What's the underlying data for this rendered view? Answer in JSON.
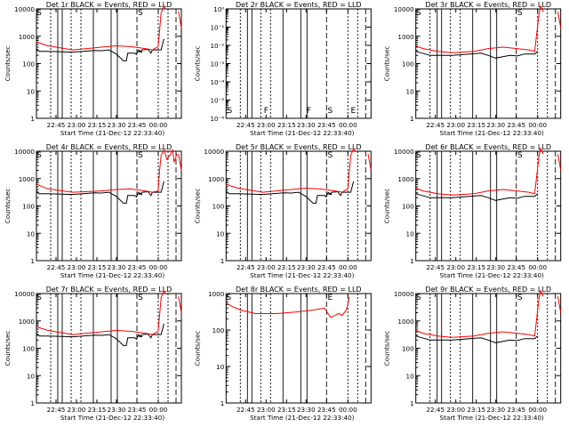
{
  "chart_data": [
    {
      "type": "line",
      "title": "Det 1r BLACK = Events, RED = LLD",
      "xlabel": "Start Time (21-Dec-12 22:33:40)",
      "ylabel": "Counts/sec",
      "yscale": "log",
      "ylim": [
        1,
        10000
      ],
      "ytick_labels": [
        "1",
        "10",
        "100",
        "1000",
        "10000"
      ],
      "xtick_labels": [
        "22:45",
        "23:00",
        "23:15",
        "23:30",
        "23:45",
        "00:00"
      ],
      "markers": [
        {
          "label": "S"
        },
        {
          "label": "S"
        }
      ],
      "series": [
        {
          "name": "Events",
          "color": "#000000",
          "shape": "A"
        },
        {
          "name": "LLD",
          "color": "#ff0000",
          "shape": "A"
        }
      ]
    },
    {
      "type": "line",
      "title": "Det 2r BLACK = Events, RED = LLD",
      "xlabel": "Start Time (21-Dec-12 22:33:40)",
      "ylabel": "Counts/sec",
      "yscale": "log",
      "ylim": [
        1e-06,
        1
      ],
      "ytick_labels": [
        "10⁻⁶",
        "10⁻⁵",
        "10⁻⁴",
        "10⁻³",
        "10⁻²",
        "10⁻¹",
        "10⁰"
      ],
      "xtick_labels": [
        "22:45",
        "23:00",
        "23:15",
        "23:30",
        "23:45",
        "00:00"
      ],
      "markers": [
        {
          "label": "S"
        },
        {
          "label": "F"
        },
        {
          "label": "F"
        },
        {
          "label": "S"
        },
        {
          "label": "E"
        }
      ],
      "series": []
    },
    {
      "type": "line",
      "title": "Det 3r BLACK = Events, RED = LLD",
      "xlabel": "Start Time (21-Dec-12 22:33:40)",
      "ylabel": "Counts/sec",
      "yscale": "log",
      "ylim": [
        1,
        10000
      ],
      "ytick_labels": [
        "1",
        "10",
        "100",
        "1000",
        "10000"
      ],
      "xtick_labels": [
        "22:45",
        "23:00",
        "23:15",
        "23:30",
        "23:45",
        "00:00"
      ],
      "markers": [
        {
          "label": "S"
        },
        {
          "label": "S"
        }
      ],
      "series": [
        {
          "name": "Events",
          "color": "#000000",
          "shape": "B"
        },
        {
          "name": "LLD",
          "color": "#ff0000",
          "shape": "B"
        }
      ]
    },
    {
      "type": "line",
      "title": "Det 4r BLACK = Events, RED = LLD",
      "xlabel": "Start Time (21-Dec-12 22:33:40)",
      "ylabel": "Counts/sec",
      "yscale": "log",
      "ylim": [
        1,
        10000
      ],
      "ytick_labels": [
        "1",
        "10",
        "100",
        "1000",
        "10000"
      ],
      "xtick_labels": [
        "22:45",
        "23:00",
        "23:15",
        "23:30",
        "23:45",
        "00:00"
      ],
      "markers": [
        {
          "label": "S"
        },
        {
          "label": "S"
        }
      ],
      "series": [
        {
          "name": "Events",
          "color": "#000000",
          "shape": "A"
        },
        {
          "name": "LLD",
          "color": "#ff0000",
          "shape": "C"
        }
      ]
    },
    {
      "type": "line",
      "title": "Det 5r BLACK = Events, RED = LLD",
      "xlabel": "Start Time (21-Dec-12 22:33:40)",
      "ylabel": "Counts/sec",
      "yscale": "log",
      "ylim": [
        1,
        10000
      ],
      "ytick_labels": [
        "1",
        "10",
        "100",
        "1000",
        "10000"
      ],
      "xtick_labels": [
        "22:45",
        "23:00",
        "23:15",
        "23:30",
        "23:45",
        "00:00"
      ],
      "markers": [
        {
          "label": "S"
        }
      ],
      "series": [
        {
          "name": "Events",
          "color": "#000000",
          "shape": "A"
        },
        {
          "name": "LLD",
          "color": "#ff0000",
          "shape": "A"
        }
      ]
    },
    {
      "type": "line",
      "title": "Det 6r BLACK = Events, RED = LLD",
      "xlabel": "Start Time (21-Dec-12 22:33:40)",
      "ylabel": "Counts/sec",
      "yscale": "log",
      "ylim": [
        1,
        10000
      ],
      "ytick_labels": [
        "1",
        "10",
        "100",
        "1000",
        "10000"
      ],
      "xtick_labels": [
        "22:45",
        "23:00",
        "23:15",
        "23:30",
        "23:45",
        "00:00"
      ],
      "markers": [
        {
          "label": "S"
        },
        {
          "label": "S"
        }
      ],
      "series": [
        {
          "name": "Events",
          "color": "#000000",
          "shape": "B"
        },
        {
          "name": "LLD",
          "color": "#ff0000",
          "shape": "B"
        }
      ]
    },
    {
      "type": "line",
      "title": "Det 7r BLACK = Events, RED = LLD",
      "xlabel": "Start Time (21-Dec-12 22:33:40)",
      "ylabel": "Counts/sec",
      "yscale": "log",
      "ylim": [
        1,
        10000
      ],
      "ytick_labels": [
        "1",
        "10",
        "100",
        "1000",
        "10000"
      ],
      "xtick_labels": [
        "22:45",
        "23:00",
        "23:15",
        "23:30",
        "23:45",
        "00:00"
      ],
      "markers": [
        {
          "label": "S"
        },
        {
          "label": "S"
        }
      ],
      "series": [
        {
          "name": "Events",
          "color": "#000000",
          "shape": "A"
        },
        {
          "name": "LLD",
          "color": "#ff0000",
          "shape": "A"
        }
      ]
    },
    {
      "type": "line",
      "title": "Det 8r BLACK = Events, RED = LLD",
      "xlabel": "Start Time (21-Dec-12 22:33:40)",
      "ylabel": "Counts/sec",
      "yscale": "log",
      "ylim": [
        1,
        1000
      ],
      "ytick_labels": [
        "1",
        "10",
        "100",
        "1000"
      ],
      "xtick_labels": [
        "22:45",
        "23:00",
        "23:15",
        "23:30",
        "23:45",
        "00:00"
      ],
      "markers": [
        {
          "label": "S"
        },
        {
          "label": "E"
        }
      ],
      "series": [
        {
          "name": "LLD",
          "color": "#ff0000",
          "shape": "D"
        }
      ]
    },
    {
      "type": "line",
      "title": "Det 9r BLACK = Events, RED = LLD",
      "xlabel": "Start Time (21-Dec-12 22:33:40)",
      "ylabel": "Counts/sec",
      "yscale": "log",
      "ylim": [
        1,
        10000
      ],
      "ytick_labels": [
        "1",
        "10",
        "100",
        "1000",
        "10000"
      ],
      "xtick_labels": [
        "22:45",
        "23:00",
        "23:15",
        "23:30",
        "23:45",
        "00:00"
      ],
      "markers": [
        {
          "label": "S"
        },
        {
          "label": "S"
        }
      ],
      "series": [
        {
          "name": "Events",
          "color": "#000000",
          "shape": "B"
        },
        {
          "name": "LLD",
          "color": "#ff0000",
          "shape": "B"
        }
      ]
    }
  ]
}
